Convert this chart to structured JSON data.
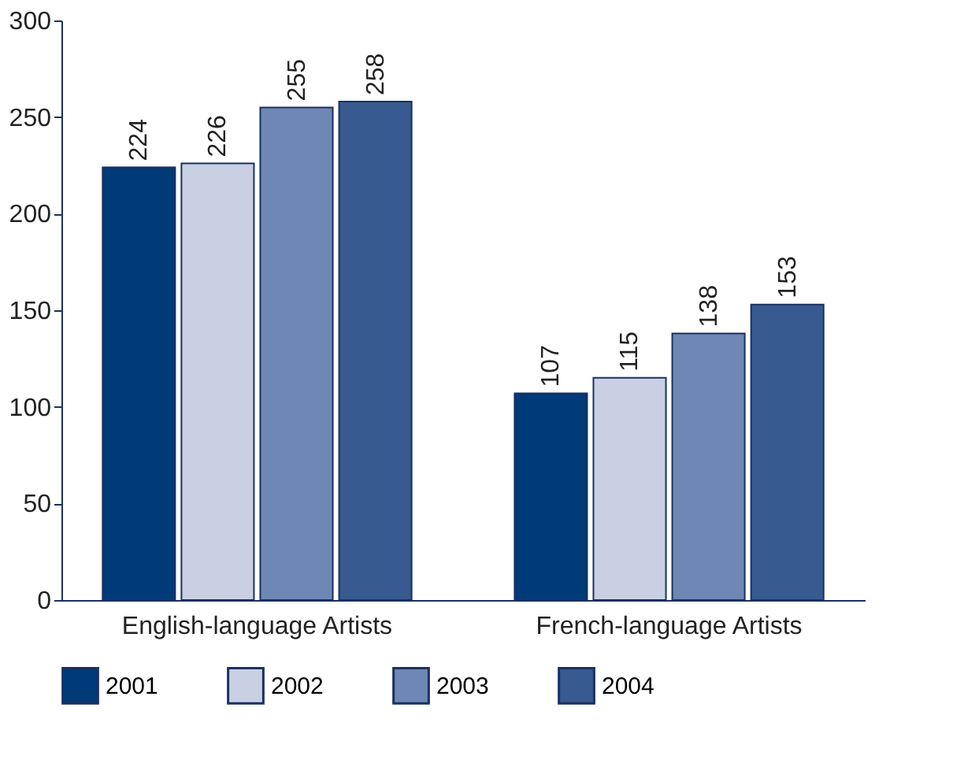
{
  "chart_data": {
    "type": "bar",
    "categories": [
      "English-language Artists",
      "French-language Artists"
    ],
    "series": [
      {
        "name": "2001",
        "color": "#003a78",
        "values": [
          224,
          107
        ]
      },
      {
        "name": "2002",
        "color": "#c9d0e4",
        "values": [
          226,
          115
        ]
      },
      {
        "name": "2003",
        "color": "#6f87b4",
        "values": [
          255,
          138
        ]
      },
      {
        "name": "2004",
        "color": "#375a90",
        "values": [
          258,
          153
        ]
      }
    ],
    "ylim": [
      0,
      300
    ],
    "yticks": [
      0,
      50,
      100,
      150,
      200,
      250,
      300
    ],
    "grid": false,
    "legend": "bottom",
    "data_labels": true
  }
}
